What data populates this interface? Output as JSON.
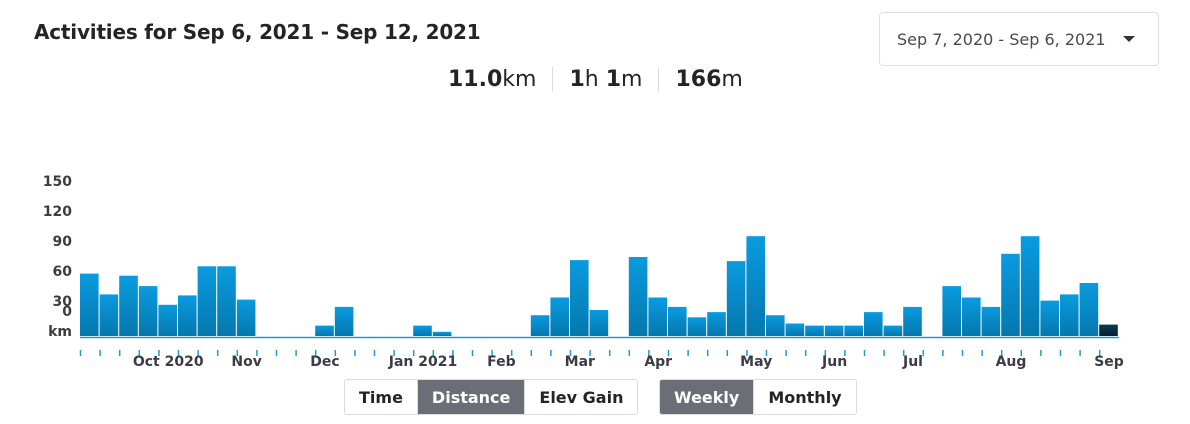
{
  "header": {
    "title": "Activities for Sep 6, 2021 - Sep 12, 2021"
  },
  "date_range": {
    "selected": "Sep 7, 2020 - Sep 6, 2021",
    "icon": "caret-down-icon"
  },
  "stats": {
    "distance_value": "11.0",
    "distance_unit": "km",
    "time_hours": "1",
    "time_hours_unit": "h",
    "time_minutes": "1",
    "time_minutes_unit": "m",
    "elev_value": "166",
    "elev_unit": "m"
  },
  "toggles": {
    "metric": {
      "options": [
        "Time",
        "Distance",
        "Elev Gain"
      ],
      "active": "Distance"
    },
    "period": {
      "options": [
        "Weekly",
        "Monthly"
      ],
      "active": "Weekly"
    }
  },
  "chart_data": {
    "type": "bar",
    "ylabel": "km",
    "yticks": [
      0,
      30,
      60,
      90,
      120,
      150
    ],
    "ylim": [
      0,
      150
    ],
    "grid": false,
    "bar_color": "#0a9be0",
    "highlight_color": "#0b3a52",
    "x_tick_labels": [
      "Oct 2020",
      "Nov",
      "Dec",
      "Jan 2021",
      "Feb",
      "Mar",
      "Apr",
      "May",
      "Jun",
      "Jul",
      "Aug",
      "Sep"
    ],
    "x_tick_label_week_index": [
      4,
      8,
      12,
      17,
      21,
      25,
      29,
      34,
      38,
      42,
      47,
      52
    ],
    "highlighted_week_index": 52,
    "values": [
      60,
      40,
      58,
      48,
      30,
      39,
      67,
      67,
      35,
      0,
      0,
      0,
      10,
      28,
      0,
      0,
      0,
      10,
      4,
      0,
      0,
      0,
      0,
      20,
      37,
      73,
      25,
      0,
      76,
      37,
      28,
      18,
      23,
      72,
      96,
      20,
      12,
      10,
      10,
      10,
      23,
      10,
      28,
      0,
      48,
      37,
      28,
      79,
      96,
      34,
      40,
      51,
      11
    ]
  }
}
